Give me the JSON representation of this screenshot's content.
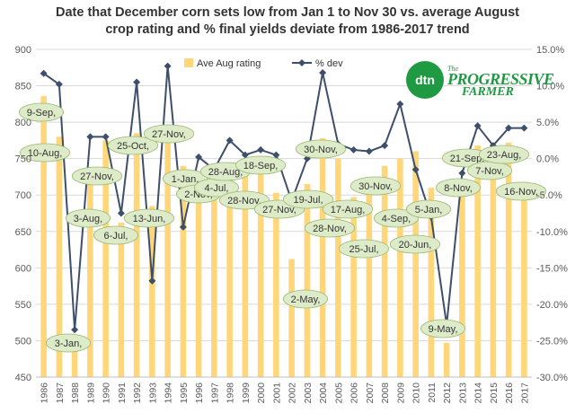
{
  "chart_data": {
    "type": "bar+line",
    "title_line1": "Date that December corn sets low from Jan 1 to Nov 30 vs. average August",
    "title_line2": "crop rating and % final yields deviate from 1986-2017 trend",
    "categories": [
      "1986",
      "1987",
      "1988",
      "1989",
      "1990",
      "1991",
      "1992",
      "1993",
      "1994",
      "1995",
      "1996",
      "1997",
      "1998",
      "1999",
      "2000",
      "2001",
      "2002",
      "2003",
      "2004",
      "2005",
      "2006",
      "2007",
      "2008",
      "2009",
      "2010",
      "2011",
      "2012",
      "2013",
      "2014",
      "2015",
      "2016",
      "2017"
    ],
    "series": [
      {
        "name": "Ave Aug rating",
        "type": "bar",
        "axis": "left",
        "color": "#FFD77A",
        "values": [
          836,
          780,
          500,
          720,
          775,
          662,
          785,
          685,
          779,
          740,
          718,
          720,
          733,
          739,
          735,
          703,
          612,
          715,
          778,
          750,
          697,
          705,
          740,
          750,
          760,
          710,
          497,
          700,
          768,
          757,
          772,
          718
        ]
      },
      {
        "name": "% dev",
        "type": "line",
        "axis": "right",
        "color": "#3E4F6B",
        "values": [
          11.7,
          10.2,
          -23.5,
          3.0,
          3.0,
          -7.5,
          10.5,
          -16.8,
          12.7,
          -9.4,
          0.2,
          -1.5,
          2.5,
          0.5,
          1.2,
          0.5,
          -5.8,
          0.0,
          11.8,
          2.0,
          1.2,
          1.0,
          1.8,
          7.5,
          -1.5,
          -8.0,
          -22.8,
          -2.0,
          4.5,
          1.8,
          4.2,
          4.2
        ]
      }
    ],
    "y_left": {
      "min": 450,
      "max": 900,
      "ticks": [
        450,
        500,
        550,
        600,
        650,
        700,
        750,
        800,
        850,
        900
      ]
    },
    "y_right": {
      "min": -30,
      "max": 15,
      "ticks": [
        "-30.0%",
        "-25.0%",
        "-20.0%",
        "-15.0%",
        "-10.0%",
        "-5.0%",
        "0.0%",
        "5.0%",
        "10.0%",
        "15.0%"
      ]
    },
    "grid": true,
    "legend_position": "top",
    "annotations": [
      {
        "text": "9-Sep,",
        "year": "1986"
      },
      {
        "text": "10-Aug,",
        "year": "1987"
      },
      {
        "text": "3-Jan,",
        "year": "1988"
      },
      {
        "text": "3-Aug,",
        "year": "1989"
      },
      {
        "text": "27-Nov,",
        "year": "1990"
      },
      {
        "text": "6-Jul,",
        "year": "1991"
      },
      {
        "text": "25-Oct,",
        "year": "1992"
      },
      {
        "text": "13-Jun,",
        "year": "1993"
      },
      {
        "text": "27-Nov,",
        "year": "1994"
      },
      {
        "text": "1-Jan,",
        "year": "1995"
      },
      {
        "text": "2-Nov,",
        "year": "1996"
      },
      {
        "text": "4-Jul,",
        "year": "1997"
      },
      {
        "text": "28-Aug,",
        "year": "1998"
      },
      {
        "text": "28-Nov,",
        "year": "1999"
      },
      {
        "text": "18-Sep,",
        "year": "2000"
      },
      {
        "text": "27-Nov,",
        "year": "2001"
      },
      {
        "text": "2-May,",
        "year": "2002"
      },
      {
        "text": "19-Jul,",
        "year": "2003"
      },
      {
        "text": "30-Nov,",
        "year": "2004"
      },
      {
        "text": "28-Nov,",
        "year": "2005"
      },
      {
        "text": "17-Aug,",
        "year": "2006"
      },
      {
        "text": "25-Jul,",
        "year": "2007"
      },
      {
        "text": "30-Nov,",
        "year": "2008"
      },
      {
        "text": "4-Sep,",
        "year": "2009"
      },
      {
        "text": "20-Jun,",
        "year": "2010"
      },
      {
        "text": "5-Jan,",
        "year": "2011"
      },
      {
        "text": "9-May,",
        "year": "2012"
      },
      {
        "text": "8-Nov,",
        "year": "2013"
      },
      {
        "text": "21-Sep,",
        "year": "2014"
      },
      {
        "text": "7-Nov,",
        "year": "2015"
      },
      {
        "text": "23-Aug,",
        "year": "2016"
      },
      {
        "text": "16-Nov,",
        "year": "2017"
      }
    ]
  },
  "logo": {
    "circle_text": "dtn",
    "line_top": "The",
    "line_main": "PROGRESSIVE",
    "line_sub": "FARMER"
  },
  "colors": {
    "bar": "#FFD77A",
    "line": "#3E4F6B",
    "bubble_fill": "#DDEBC9",
    "bubble_stroke": "#9BB871",
    "grid": "#D9D9D9",
    "axis_text": "#595959"
  }
}
